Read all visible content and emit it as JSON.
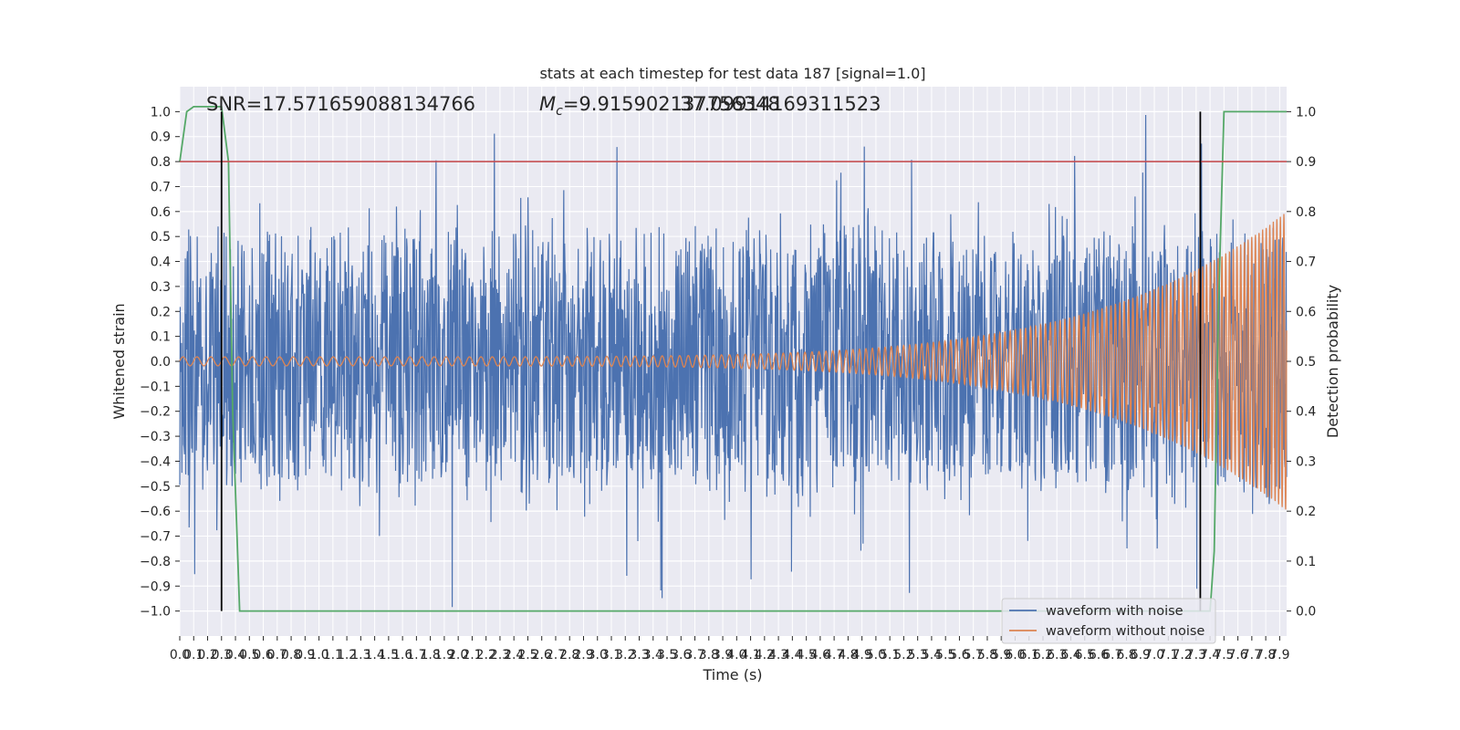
{
  "chart_data": {
    "type": "line",
    "title": "stats at each timestep for test data 187 [signal=1.0]",
    "xlabel": "Time (s)",
    "ylabel_left": "Whitened strain",
    "ylabel_right": "Detection probability",
    "xlim": [
      0.0,
      7.95
    ],
    "ylim_left": [
      -1.1,
      1.1
    ],
    "ylim_right": [
      -0.05,
      1.05
    ],
    "x_ticks": [
      "0.0",
      "0.1",
      "0.2",
      "0.3",
      "0.4",
      "0.5",
      "0.6",
      "0.7",
      "0.8",
      "0.9",
      "1.0",
      "1.1",
      "1.2",
      "1.3",
      "1.4",
      "1.5",
      "1.6",
      "1.7",
      "1.8",
      "1.9",
      "2.0",
      "2.1",
      "2.2",
      "2.3",
      "2.4",
      "2.5",
      "2.6",
      "2.7",
      "2.8",
      "2.9",
      "3.0",
      "3.1",
      "3.2",
      "3.3",
      "3.4",
      "3.5",
      "3.6",
      "3.7",
      "3.8",
      "3.9",
      "4.0",
      "4.1",
      "4.2",
      "4.3",
      "4.4",
      "4.5",
      "4.6",
      "4.7",
      "4.8",
      "4.9",
      "5.0",
      "5.1",
      "5.2",
      "5.3",
      "5.4",
      "5.5",
      "5.6",
      "5.7",
      "5.8",
      "5.9",
      "6.0",
      "6.1",
      "6.2",
      "6.3",
      "6.4",
      "6.5",
      "6.6",
      "6.7",
      "6.8",
      "6.9",
      "7.0",
      "7.1",
      "7.2",
      "7.3",
      "7.4",
      "7.5",
      "7.6",
      "7.7",
      "7.8",
      "7.9"
    ],
    "y_ticks_left": [
      "1.0",
      "0.9",
      "0.8",
      "0.7",
      "0.6",
      "0.5",
      "0.4",
      "0.3",
      "0.2",
      "0.1",
      "0.0",
      "−0.1",
      "−0.2",
      "−0.3",
      "−0.4",
      "−0.5",
      "−0.6",
      "−0.7",
      "−0.8",
      "−0.9",
      "−1.0"
    ],
    "y_ticks_right": [
      "1.0",
      "0.9",
      "0.8",
      "0.7",
      "0.6",
      "0.5",
      "0.4",
      "0.3",
      "0.2",
      "0.1",
      "0.0"
    ],
    "annotations": {
      "snr": "SNR=17.571659088134766",
      "mc_symbol": "M",
      "mc_sub": "c",
      "mc_value": "=9.915902137756348",
      "overlap": "37.09914169311523"
    },
    "series": [
      {
        "name": "waveform with noise",
        "axis": "left",
        "color": "#4c72b0",
        "envelope": {
          "x_start": 0.0,
          "x_end": 7.95,
          "core": 0.38,
          "spike_max": 1.0,
          "spike_min": -1.0,
          "end_amplitude": 0.42
        }
      },
      {
        "name": "waveform without noise",
        "axis": "left",
        "color": "#dd8452",
        "chirp": {
          "x_start": 0.0,
          "x_end": 7.95,
          "start_amplitude": 0.018,
          "end_amplitude": 0.6,
          "start_cycles_per_s": 10,
          "end_cycles_per_s": 40
        }
      },
      {
        "axis": "right",
        "color": "#55a868",
        "points": [
          [
            0.0,
            0.9
          ],
          [
            0.05,
            1.0
          ],
          [
            0.1,
            1.01
          ],
          [
            0.3,
            1.01
          ],
          [
            0.35,
            0.9
          ],
          [
            0.38,
            0.4
          ],
          [
            0.43,
            0.0
          ],
          [
            7.4,
            0.0
          ],
          [
            7.43,
            0.12
          ],
          [
            7.46,
            0.6
          ],
          [
            7.5,
            1.0
          ],
          [
            7.95,
            1.0
          ]
        ]
      },
      {
        "axis": "right",
        "color": "#c44e52",
        "hline": 0.9
      }
    ],
    "vlines": {
      "axis": "left",
      "color": "#000000",
      "x": [
        0.3,
        7.33
      ],
      "y_range": [
        -1.0,
        1.0
      ]
    },
    "legend": {
      "location": "lower-right",
      "entries": [
        "waveform with noise",
        "waveform without noise"
      ]
    },
    "grid": true,
    "background_color": "#eaeaf2"
  }
}
